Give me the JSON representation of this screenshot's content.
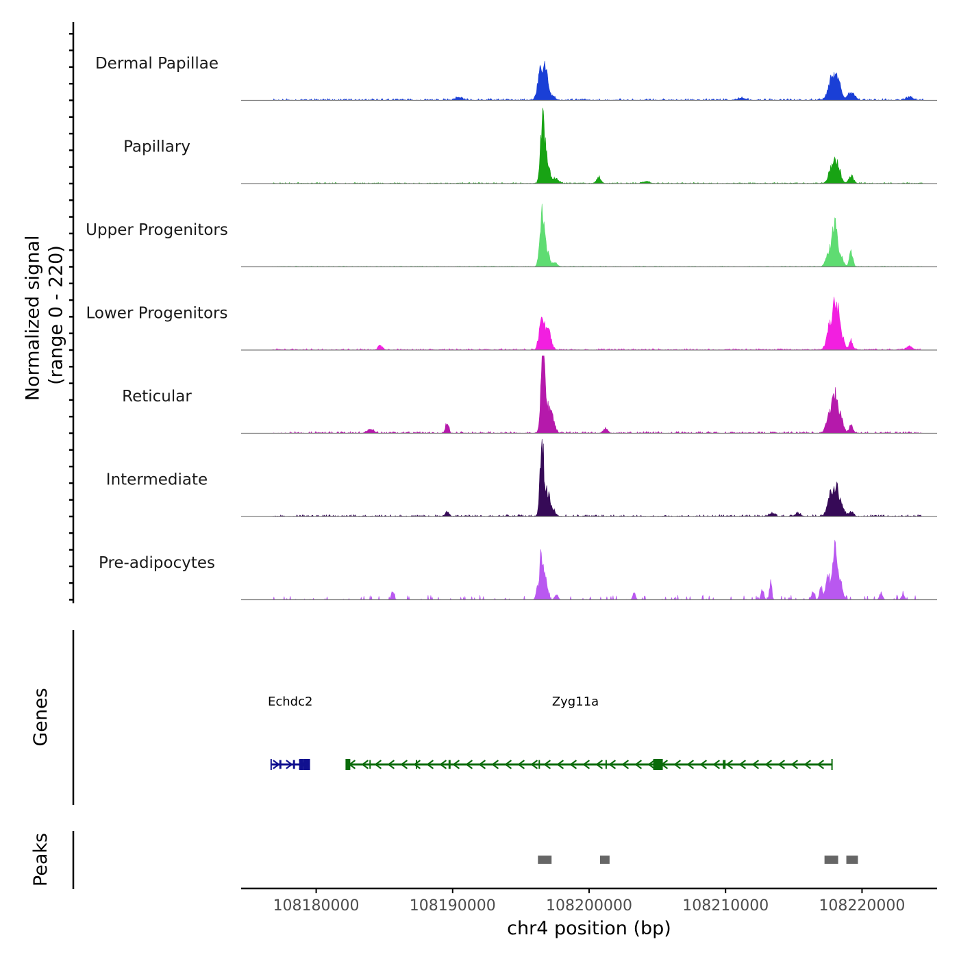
{
  "chart_data": {
    "type": "area",
    "kind": "genome-coverage-track",
    "chromosome": "chr4",
    "xlabel": "chr4 position (bp)",
    "xlim": [
      108174500,
      108225500
    ],
    "xticks": [
      108180000,
      108190000,
      108200000,
      108210000,
      108220000
    ],
    "xtick_labels": [
      "108180000",
      "108190000",
      "108200000",
      "108210000",
      "108220000"
    ],
    "coverage": {
      "ylabel": "Normalized signal\n(range 0 - 220)",
      "ylim": [
        0,
        220
      ],
      "data_start": 108176800,
      "data_end": 108224500,
      "tracks": [
        {
          "name": "Dermal Papillae",
          "color": "#1a3fd6",
          "peaks": [
            [
              108196500,
              100,
              220
            ],
            [
              108196850,
              60,
              160
            ],
            [
              108197300,
              12,
              200
            ],
            [
              108190450,
              8,
              220
            ],
            [
              108217700,
              54,
              220
            ],
            [
              108218200,
              66,
              220
            ],
            [
              108219050,
              22,
              160
            ],
            [
              108219400,
              16,
              160
            ],
            [
              108211200,
              6,
              260
            ],
            [
              108223500,
              8,
              260
            ]
          ],
          "noise": 5,
          "seed": 11
        },
        {
          "name": "Papillary",
          "color": "#18a314",
          "peaks": [
            [
              108196600,
              190,
              150
            ],
            [
              108196950,
              60,
              150
            ],
            [
              108197500,
              14,
              240
            ],
            [
              108200700,
              18,
              160
            ],
            [
              108217800,
              42,
              240
            ],
            [
              108218200,
              50,
              220
            ],
            [
              108219200,
              22,
              170
            ],
            [
              108204200,
              6,
              220
            ]
          ],
          "noise": 3,
          "seed": 23
        },
        {
          "name": "Upper Progenitors",
          "color": "#5fdc72",
          "peaks": [
            [
              108196550,
              150,
              160
            ],
            [
              108196900,
              42,
              160
            ],
            [
              108197400,
              12,
              230
            ],
            [
              108217600,
              44,
              220
            ],
            [
              108218000,
              110,
              160
            ],
            [
              108218400,
              36,
              200
            ],
            [
              108219200,
              46,
              120
            ]
          ],
          "noise": 2,
          "seed": 37
        },
        {
          "name": "Lower Progenitors",
          "color": "#f21fe0",
          "peaks": [
            [
              108196500,
              88,
              170
            ],
            [
              108196850,
              40,
              180
            ],
            [
              108197100,
              32,
              170
            ],
            [
              108217700,
              82,
              230
            ],
            [
              108218100,
              122,
              160
            ],
            [
              108218450,
              50,
              200
            ],
            [
              108219200,
              28,
              120
            ],
            [
              108184700,
              12,
              150
            ],
            [
              108223500,
              10,
              200
            ]
          ],
          "noise": 4,
          "seed": 41
        },
        {
          "name": "Reticular",
          "color": "#b519ab",
          "peaks": [
            [
              108196600,
              202,
              140
            ],
            [
              108196900,
              84,
              160
            ],
            [
              108197300,
              50,
              170
            ],
            [
              108189600,
              34,
              110
            ],
            [
              108217600,
              46,
              220
            ],
            [
              108218000,
              96,
              180
            ],
            [
              108218400,
              52,
              200
            ],
            [
              108219200,
              22,
              140
            ],
            [
              108201200,
              14,
              160
            ],
            [
              108184000,
              10,
              230
            ]
          ],
          "noise": 5,
          "seed": 53
        },
        {
          "name": "Intermediate",
          "color": "#360a57",
          "peaks": [
            [
              108196550,
              210,
              140
            ],
            [
              108196950,
              62,
              160
            ],
            [
              108197300,
              22,
              200
            ],
            [
              108189600,
              12,
              140
            ],
            [
              108217700,
              60,
              220
            ],
            [
              108218150,
              72,
              190
            ],
            [
              108218550,
              28,
              180
            ],
            [
              108219200,
              14,
              160
            ],
            [
              108215300,
              8,
              200
            ],
            [
              108213400,
              8,
              200
            ]
          ],
          "noise": 5,
          "seed": 67
        },
        {
          "name": "Pre-adipocytes",
          "color": "#b958f0",
          "peaks": [
            [
              108196500,
              138,
              100
            ],
            [
              108196750,
              72,
              100
            ],
            [
              108196200,
              34,
              100
            ],
            [
              108196950,
              26,
              100
            ],
            [
              108197600,
              16,
              120
            ],
            [
              108218000,
              165,
              150
            ],
            [
              108217500,
              80,
              140
            ],
            [
              108218400,
              64,
              150
            ],
            [
              108217000,
              36,
              110
            ],
            [
              108216400,
              22,
              110
            ],
            [
              108213300,
              44,
              90
            ],
            [
              108212700,
              30,
              100
            ],
            [
              108185600,
              26,
              100
            ],
            [
              108203300,
              20,
              100
            ],
            [
              108221400,
              20,
              110
            ],
            [
              108223000,
              16,
              110
            ]
          ],
          "noise": 6,
          "sparse": true,
          "seed": 79
        }
      ]
    },
    "genes": {
      "ylabel": "Genes",
      "items": [
        {
          "name": "Echdc2",
          "strand": "+",
          "color": "#10108f",
          "start": 108176700,
          "end": 108179500,
          "exons": [
            [
              108177300,
              108177450
            ],
            [
              108178300,
              108178450
            ],
            [
              108178750,
              108179050
            ],
            [
              108179050,
              108179500
            ]
          ]
        },
        {
          "name": "Zyg11a",
          "strand": "-",
          "color": "#0a6b0a",
          "start": 108182200,
          "end": 108217800,
          "label_pos": 108200000,
          "exons": [
            [
              108182200,
              108182500
            ],
            [
              108183900,
              108184000
            ],
            [
              108187300,
              108187400
            ],
            [
              108189700,
              108189850
            ],
            [
              108196300,
              108196400
            ],
            [
              108201200,
              108201300
            ],
            [
              108204700,
              108205400
            ],
            [
              108209800,
              108210000
            ]
          ]
        }
      ]
    },
    "peaks": {
      "ylabel": "Peaks",
      "color": "#666666",
      "regions": [
        [
          108196250,
          108197250
        ],
        [
          108200800,
          108201500
        ],
        [
          108217250,
          108218250
        ],
        [
          108218850,
          108219700
        ]
      ]
    }
  }
}
